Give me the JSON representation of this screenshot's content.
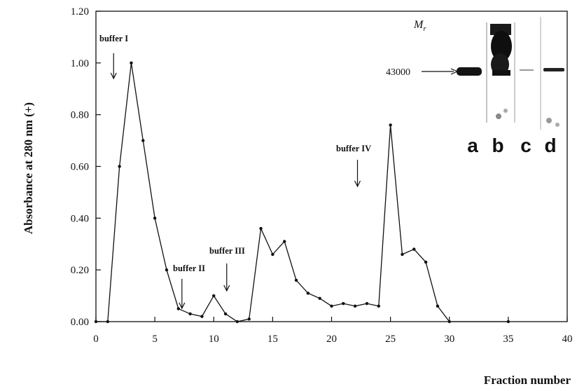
{
  "chart_data": {
    "type": "line",
    "ylabel": "Absorbance at 280 nm (+)",
    "xlabel": "Fraction number",
    "xlim": [
      0,
      40
    ],
    "ylim": [
      0,
      1.2
    ],
    "x_ticks": [
      "0",
      "5",
      "10",
      "15",
      "20",
      "25",
      "30",
      "35",
      "40"
    ],
    "y_ticks": [
      "0.00",
      "0.20",
      "0.40",
      "0.60",
      "0.80",
      "1.00",
      "1.20"
    ],
    "grid": false,
    "series": [
      {
        "x": [
          0,
          1,
          2,
          3,
          4,
          5,
          6,
          7,
          8,
          9,
          10,
          11,
          12,
          13,
          14,
          15,
          16,
          17,
          18,
          19,
          20,
          21,
          22,
          23,
          24,
          25,
          26,
          27,
          28,
          29,
          30,
          35
        ],
        "values": [
          0.0,
          0.0,
          0.6,
          1.0,
          0.7,
          0.4,
          0.2,
          0.05,
          0.03,
          0.02,
          0.1,
          0.03,
          0.0,
          0.01,
          0.36,
          0.26,
          0.31,
          0.16,
          0.11,
          0.09,
          0.06,
          0.07,
          0.06,
          0.07,
          0.06,
          0.76,
          0.26,
          0.28,
          0.23,
          0.06,
          0.0,
          0.0
        ]
      }
    ],
    "annotations": [
      {
        "text": "buffer I",
        "x": 1.5
      },
      {
        "text": "buffer II",
        "x": 7.3
      },
      {
        "text": "buffer III",
        "x": 11.1
      },
      {
        "text": "buffer IV",
        "x": 22.2
      }
    ],
    "inset": {
      "title": "M",
      "title_sub": "r",
      "marker": "43000",
      "lanes": [
        "a",
        "b",
        "c",
        "d"
      ]
    }
  }
}
